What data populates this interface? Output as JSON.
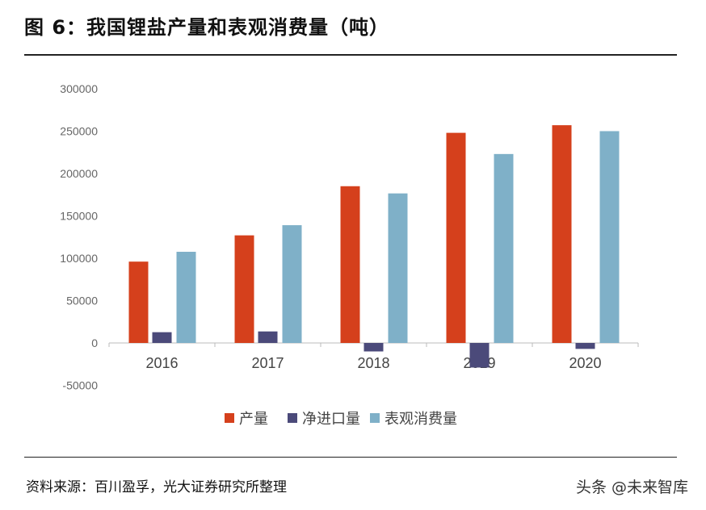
{
  "title": "图 6：我国锂盐产量和表观消费量（吨）",
  "source": "资料来源：百川盈孚，光大证券研究所整理",
  "watermark": "头条 @未来智库",
  "chart_data": {
    "type": "bar",
    "categories": [
      "2016",
      "2017",
      "2018",
      "2019",
      "2020"
    ],
    "series": [
      {
        "name": "产量",
        "color": "#d5401c",
        "values": [
          96000,
          127000,
          185000,
          248000,
          257000
        ]
      },
      {
        "name": "净进口量",
        "color": "#4b4a7a",
        "values": [
          12700,
          13600,
          -10000,
          -29000,
          -7000
        ]
      },
      {
        "name": "表观消费量",
        "color": "#7fb0c8",
        "values": [
          107600,
          139000,
          176500,
          223000,
          250000
        ]
      }
    ],
    "ylim": [
      -50000,
      300000
    ],
    "yticks": [
      "-50000",
      "0",
      "50000",
      "100000",
      "150000",
      "200000",
      "250000",
      "300000"
    ],
    "grid": false,
    "legend": "bottom"
  }
}
